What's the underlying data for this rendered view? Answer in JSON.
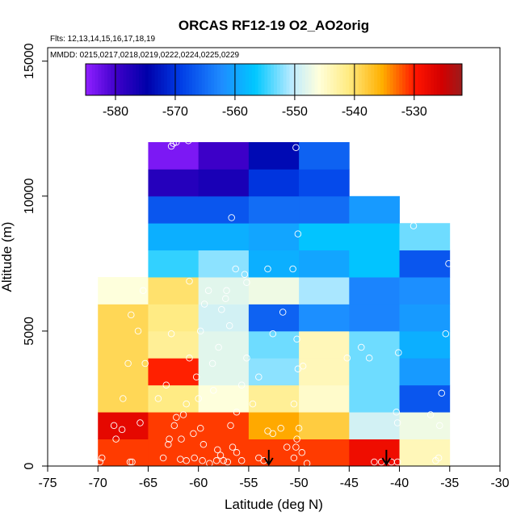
{
  "chart_data": {
    "type": "heatmap",
    "title": "ORCAS RF12-19 O2_AO2orig",
    "flights_note": "Flts: 12,13,14,15,16,17,18,19",
    "dates_note": "MMDD: 0215,0217,0218,0219,0222,0224,0225,0229",
    "xlabel": "Latitude (deg N)",
    "ylabel": "Altitude (m)",
    "xlim": [
      -75,
      -30
    ],
    "ylim": [
      0,
      15500
    ],
    "xticks": [
      -75,
      -70,
      -65,
      -60,
      -55,
      -50,
      -45,
      -40,
      -35,
      -30
    ],
    "yticks": [
      0,
      5000,
      10000,
      15000
    ],
    "xtick_labels": [
      "-75",
      "-70",
      "-65",
      "-60",
      "-55",
      "-50",
      "-45",
      "-40",
      "-35",
      "-30"
    ],
    "ytick_labels": [
      "0",
      "5000",
      "10000",
      "15000"
    ],
    "colorbar": {
      "range": [
        -585,
        -522
      ],
      "ticks": [
        -580,
        -570,
        -560,
        -550,
        -540,
        -530
      ],
      "tick_labels": [
        "-580",
        "-570",
        "-560",
        "-550",
        "-540",
        "-530"
      ]
    },
    "bin_width_lat": 5,
    "bin_height_alt": 1000,
    "lat_bin_starts": [
      -70,
      -65,
      -60,
      -55,
      -50,
      -45,
      -40
    ],
    "alt_bin_starts": [
      0,
      1000,
      2000,
      3000,
      4000,
      5000,
      6000,
      7000,
      8000,
      9000,
      10000,
      11000
    ],
    "cell_values": [
      [
        -531,
        -531,
        -531,
        -531,
        -531,
        -528,
        -544
      ],
      [
        -527,
        -531,
        -531,
        -535,
        -538,
        -549,
        -547
      ],
      [
        -539,
        -541,
        -546,
        -542,
        -545,
        -553,
        -567
      ],
      [
        -539,
        -530,
        -548,
        -552,
        -544,
        -553,
        -561
      ],
      [
        -539,
        -542,
        -548,
        -553,
        -544,
        -553,
        -559
      ],
      [
        -539,
        -541,
        -549,
        -566,
        -562,
        -563,
        -561
      ],
      [
        -546,
        -540,
        -548,
        -547,
        -551,
        -563,
        -562
      ],
      [
        null,
        -555,
        -552,
        -559,
        -560,
        -557,
        -567
      ],
      [
        null,
        -559,
        -559,
        -560,
        -557,
        -557,
        -553
      ],
      [
        null,
        -567,
        -567,
        -565,
        -565,
        -561,
        null
      ],
      [
        null,
        -578,
        -577,
        -570,
        -568,
        null,
        null
      ],
      [
        null,
        -584,
        -580,
        -574,
        -566,
        null,
        null
      ]
    ],
    "observations": [
      [
        -69.8,
        150
      ],
      [
        -69.6,
        300
      ],
      [
        -68.2,
        1000
      ],
      [
        -68.4,
        1500
      ],
      [
        -67.6,
        1350
      ],
      [
        -66.8,
        150
      ],
      [
        -66.6,
        150
      ],
      [
        -65.8,
        1600
      ],
      [
        -65.3,
        3800
      ],
      [
        -67,
        3800
      ],
      [
        -67.5,
        2500
      ],
      [
        -66.7,
        5600
      ],
      [
        -65.5,
        6500
      ],
      [
        -66,
        5000
      ],
      [
        -62.7,
        11850
      ],
      [
        -62.5,
        11950
      ],
      [
        -62.2,
        12000
      ],
      [
        -61,
        12050
      ],
      [
        -63.2,
        3000
      ],
      [
        -62.7,
        4900
      ],
      [
        -64,
        2500
      ],
      [
        -63.5,
        300
      ],
      [
        -63,
        800
      ],
      [
        -62.9,
        1000
      ],
      [
        -62.4,
        1500
      ],
      [
        -61.8,
        250
      ],
      [
        -61.5,
        1900
      ],
      [
        -60.9,
        4000
      ],
      [
        -60.2,
        3300
      ],
      [
        -60,
        2500
      ],
      [
        -59.8,
        5000
      ],
      [
        -59.4,
        6000
      ],
      [
        -59,
        6500
      ],
      [
        -58.6,
        3800
      ],
      [
        -59.8,
        1400
      ],
      [
        -59.5,
        800
      ],
      [
        -60.9,
        6850
      ],
      [
        -60.5,
        1200
      ],
      [
        -58.1,
        600
      ],
      [
        -57.8,
        400
      ],
      [
        -57.5,
        200
      ],
      [
        -57.1,
        150
      ],
      [
        -56.6,
        700
      ],
      [
        -56.2,
        500
      ],
      [
        -55.7,
        200
      ],
      [
        -56.8,
        1500
      ],
      [
        -56.2,
        2000
      ],
      [
        -55.7,
        3000
      ],
      [
        -55.2,
        4000
      ],
      [
        -56.7,
        9200
      ],
      [
        -56.3,
        7300
      ],
      [
        -55.4,
        7100
      ],
      [
        -55.2,
        6800
      ],
      [
        -57.3,
        6200
      ],
      [
        -57.7,
        5800
      ],
      [
        -58,
        4400
      ],
      [
        -58.5,
        2800
      ],
      [
        -57.2,
        6500
      ],
      [
        -56.9,
        5200
      ],
      [
        -58.2,
        200
      ],
      [
        -58.9,
        100
      ],
      [
        -59.6,
        200
      ],
      [
        -60.4,
        300
      ],
      [
        -61.2,
        200
      ],
      [
        -61.7,
        1000
      ],
      [
        -62.2,
        1800
      ],
      [
        -61.2,
        2300
      ],
      [
        -54,
        300
      ],
      [
        -53.5,
        200
      ],
      [
        -53.1,
        1300
      ],
      [
        -52.6,
        1200
      ],
      [
        -51.8,
        1400
      ],
      [
        -51.2,
        700
      ],
      [
        -50.5,
        300
      ],
      [
        -50.3,
        700
      ],
      [
        -50.2,
        1000
      ],
      [
        -50,
        1400
      ],
      [
        -50.5,
        2300
      ],
      [
        -50.1,
        3600
      ],
      [
        -50.2,
        4700
      ],
      [
        -50.6,
        7300
      ],
      [
        -50.1,
        8600
      ],
      [
        -50.3,
        11800
      ],
      [
        -51.6,
        5700
      ],
      [
        -52.6,
        4900
      ],
      [
        -53.1,
        7300
      ],
      [
        -49.6,
        3700
      ],
      [
        -49.7,
        500
      ],
      [
        -49.2,
        100
      ],
      [
        -54.6,
        2300
      ],
      [
        -54,
        3300
      ],
      [
        -45.2,
        4000
      ],
      [
        -43.8,
        4400
      ],
      [
        -43,
        4000
      ],
      [
        -42.5,
        150
      ],
      [
        -41.8,
        150
      ],
      [
        -40.8,
        150
      ],
      [
        -40.2,
        150
      ],
      [
        -40.3,
        2000
      ],
      [
        -40.2,
        1600
      ],
      [
        -40.1,
        4200
      ],
      [
        -38.6,
        8900
      ],
      [
        -36.9,
        1900
      ],
      [
        -36,
        1500
      ],
      [
        -35.8,
        2700
      ],
      [
        -35.4,
        4900
      ],
      [
        -35.1,
        7500
      ],
      [
        -36.4,
        200
      ],
      [
        -36.1,
        300
      ]
    ],
    "arrows": [
      {
        "lat": -53,
        "alt_top": 600
      },
      {
        "lat": -41.3,
        "alt_top": 600
      }
    ]
  }
}
